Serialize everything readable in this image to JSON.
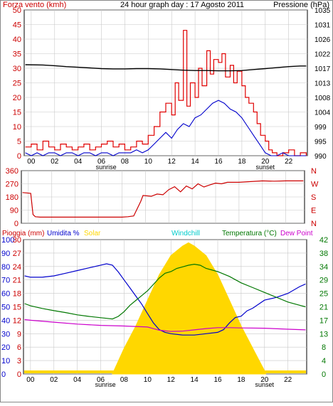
{
  "header": {
    "left": "Forza vento (kmh)",
    "center": "24 hour graph day : 17 Agosto 2011",
    "right": "Pressione (hPa)"
  },
  "x_axis": {
    "ticks": [
      "00",
      "02",
      "04",
      "06",
      "08",
      "10",
      "12",
      "14",
      "16",
      "18",
      "20",
      "22"
    ],
    "sunrise_label": "sunrise",
    "sunset_label": "sunset",
    "sunrise_hour": 6.4,
    "sunset_hour": 20.0
  },
  "colors": {
    "wind_gust": "#e00000",
    "wind_avg": "#0000cc",
    "pressure": "#000000",
    "direction": "#cc0000",
    "humidity": "#0000cc",
    "temperature": "#007700",
    "dewpoint": "#cc00cc",
    "solar": "#ffd700",
    "rain": "#0000ff",
    "windchill": "#00cccc",
    "grid": "#c8c8c8",
    "axis_text_red": "#cc0000",
    "axis_text_blue": "#0000cc",
    "axis_text_green": "#007700"
  },
  "bottom_legend": {
    "rain": "Pioggia (mm)",
    "humidity": "Umidita %",
    "solar": "Solar",
    "windchill": "Windchill",
    "temperature": "Temperatura (°C)",
    "dewpoint": "Dew Point"
  },
  "chart_data": [
    {
      "type": "line",
      "title": "24 hour graph day : 17 Agosto 2011",
      "ylabel_left": "Forza vento (kmh)",
      "ylabel_right": "Pressione (hPa)",
      "y_left_ticks": [
        "0",
        "5",
        "10",
        "15",
        "20",
        "25",
        "30",
        "35",
        "40",
        "45",
        "50"
      ],
      "y_left_range": [
        0,
        50
      ],
      "y_right_ticks": [
        "990",
        "995",
        "999",
        "1004",
        "1008",
        "1013",
        "1017",
        "1022",
        "1026",
        "1031",
        "1035"
      ],
      "y_right_range": [
        990,
        1035
      ],
      "x_range": [
        -0.6,
        23.6
      ],
      "series": [
        {
          "name": "Forza vento (kmh)",
          "key": "gust",
          "x": [
            -0.5,
            0,
            0.5,
            1,
            1.5,
            2,
            2.5,
            3,
            3.5,
            4,
            4.5,
            5,
            5.5,
            6,
            6.5,
            7,
            7.5,
            8,
            8.5,
            9,
            9.5,
            10,
            10.5,
            11,
            11.5,
            12,
            12.3,
            12.6,
            13,
            13.3,
            13.6,
            14,
            14.3,
            14.6,
            15,
            15.3,
            15.6,
            16,
            16.3,
            16.6,
            17,
            17.3,
            17.6,
            18,
            18.3,
            18.6,
            19,
            19.3,
            19.6,
            20,
            20.3,
            20.6,
            21,
            21.5,
            22,
            22.5,
            23,
            23.5
          ],
          "y": [
            3,
            4,
            2,
            5,
            3,
            2,
            4,
            3,
            2,
            3,
            4,
            2,
            3,
            4,
            5,
            3,
            4,
            2,
            3,
            5,
            4,
            7,
            10,
            15,
            18,
            14,
            25,
            19,
            43,
            17,
            25,
            20,
            30,
            24,
            36,
            28,
            33,
            32,
            35,
            27,
            31,
            25,
            29,
            24,
            20,
            18,
            15,
            11,
            7,
            5,
            2,
            1,
            0,
            1,
            2,
            0,
            1,
            0
          ]
        },
        {
          "name": "Forza vento (kmh)",
          "key": "average",
          "x": [
            -0.5,
            0,
            0.5,
            1,
            1.5,
            2,
            2.5,
            3,
            3.5,
            4,
            4.5,
            5,
            5.5,
            6,
            6.5,
            7,
            7.5,
            8,
            8.5,
            9,
            9.5,
            10,
            10.5,
            11,
            11.5,
            12,
            12.5,
            13,
            13.5,
            14,
            14.5,
            15,
            15.5,
            16,
            16.5,
            17,
            17.5,
            18,
            18.5,
            19,
            19.5,
            20,
            20.5,
            21,
            21.5,
            22,
            22.5,
            23,
            23.5
          ],
          "y": [
            1,
            0,
            1,
            0,
            1,
            1,
            0,
            1,
            1,
            0,
            1,
            1,
            0,
            1,
            1,
            0,
            1,
            1,
            1,
            2,
            1,
            2,
            4,
            6,
            8,
            6,
            9,
            11,
            10,
            13,
            14,
            16,
            18,
            19,
            18,
            16,
            15,
            13,
            10,
            7,
            4,
            1,
            0,
            0,
            1,
            0,
            0,
            0,
            0
          ]
        },
        {
          "name": "Pressione (hPa)",
          "key": "pressure",
          "x": [
            -0.5,
            1,
            2,
            3,
            4,
            5,
            6,
            7,
            8,
            9,
            10,
            11,
            12,
            13,
            14,
            15,
            16,
            17,
            18,
            19,
            20,
            21,
            22,
            23,
            23.5
          ],
          "y": [
            1018.1,
            1018.0,
            1017.8,
            1017.5,
            1017.3,
            1017.1,
            1016.9,
            1016.8,
            1016.8,
            1016.9,
            1016.9,
            1016.8,
            1016.6,
            1016.4,
            1016.3,
            1016.3,
            1016.2,
            1016.2,
            1016.3,
            1016.6,
            1016.9,
            1017.2,
            1017.5,
            1017.7,
            1017.7
          ]
        }
      ]
    },
    {
      "type": "line",
      "title": "",
      "y_ticks": [
        "360",
        "270",
        "180",
        "90",
        "0"
      ],
      "y_range": [
        0,
        360
      ],
      "y_right_labels": [
        "N",
        "W",
        "S",
        "E",
        "N"
      ],
      "x_range": [
        -0.6,
        23.6
      ],
      "series": [
        {
          "name": "",
          "key": "direction",
          "x": [
            -0.5,
            0.2,
            0.4,
            0.6,
            1,
            2,
            3,
            4,
            5,
            6,
            7,
            8,
            8.5,
            9,
            9.6,
            9.8,
            10.5,
            11,
            11.5,
            12,
            12.5,
            13,
            13.5,
            14,
            14.5,
            15,
            15.5,
            16,
            16.5,
            17,
            18,
            19,
            20,
            21,
            22,
            23,
            23.5
          ],
          "y": [
            210,
            205,
            60,
            45,
            42,
            42,
            42,
            42,
            42,
            42,
            42,
            42,
            45,
            50,
            150,
            190,
            185,
            200,
            195,
            230,
            250,
            215,
            255,
            235,
            270,
            248,
            262,
            275,
            270,
            280,
            280,
            285,
            290,
            288,
            290,
            290,
            290
          ]
        }
      ]
    },
    {
      "type": "line",
      "title": "",
      "y_left_ticks": [
        "0",
        "10",
        "20",
        "30",
        "40",
        "50",
        "60",
        "70",
        "80",
        "90",
        "100"
      ],
      "y_left_range": [
        0,
        100
      ],
      "y_left2_ticks": [
        "0",
        "3",
        "6",
        "9",
        "12",
        "15",
        "18",
        "21",
        "24",
        "27",
        "30"
      ],
      "y_right_ticks": [
        "0",
        "4",
        "8",
        "13",
        "17",
        "21",
        "25",
        "29",
        "34",
        "38",
        "42"
      ],
      "y_right_range": [
        0,
        42
      ],
      "x_range": [
        -0.6,
        23.6
      ],
      "series": [
        {
          "name": "Umidita %",
          "key": "humidity",
          "x": [
            -0.5,
            0,
            1,
            2,
            3,
            4,
            5,
            6,
            6.5,
            7,
            7.5,
            8,
            8.5,
            9,
            9.5,
            10,
            10.5,
            11,
            11.5,
            12,
            13,
            14,
            15,
            16,
            16.5,
            17,
            17.5,
            18,
            18.5,
            19,
            20,
            21,
            22,
            23,
            23.5
          ],
          "y": [
            73,
            72,
            72,
            73,
            75,
            77,
            79,
            81,
            82,
            81,
            76,
            70,
            64,
            58,
            52,
            45,
            38,
            33,
            31,
            30,
            29,
            29,
            30,
            31,
            33,
            38,
            42,
            43,
            47,
            49,
            55,
            57,
            60,
            65,
            67
          ]
        },
        {
          "name": "Temperatura (°C)",
          "key": "temperature",
          "x": [
            -0.5,
            0,
            1,
            2,
            3,
            4,
            5,
            6,
            6.5,
            7,
            7.5,
            8,
            8.5,
            9,
            9.5,
            10,
            10.5,
            11,
            11.5,
            12,
            12.5,
            13,
            13.5,
            14,
            14.5,
            15,
            16,
            17,
            18,
            19,
            20,
            21,
            22,
            23,
            23.5
          ],
          "y": [
            22,
            21.3,
            20.5,
            19.8,
            19.2,
            18.5,
            18,
            17.6,
            17.4,
            17.2,
            18,
            19.5,
            21.5,
            23,
            24.5,
            26,
            28,
            30,
            31.5,
            32,
            33,
            33.5,
            34,
            34.3,
            34,
            33,
            32,
            30.5,
            28.5,
            27,
            25.5,
            24,
            22.5,
            21.5,
            21
          ]
        },
        {
          "name": "Dew Point",
          "key": "dewpoint",
          "x": [
            -0.5,
            0,
            2,
            4,
            6,
            8,
            10,
            11,
            12,
            13,
            14,
            15,
            16,
            17,
            18,
            20,
            22,
            23.5
          ],
          "y": [
            17,
            16.8,
            16.2,
            15.6,
            15.2,
            15,
            14.7,
            13.7,
            13.3,
            13.4,
            13.8,
            14.2,
            14.5,
            14.5,
            14.4,
            14.3,
            14,
            13.8
          ]
        },
        {
          "name": "Solar",
          "key": "solar",
          "x": [
            7,
            8,
            9,
            10,
            11,
            12,
            13,
            13.5,
            14,
            15,
            16,
            17,
            18,
            19,
            20,
            20.1
          ],
          "y": [
            0,
            8,
            15,
            23,
            31,
            37,
            40,
            41,
            40,
            37,
            31,
            23,
            15,
            8,
            1,
            0
          ]
        }
      ]
    }
  ]
}
